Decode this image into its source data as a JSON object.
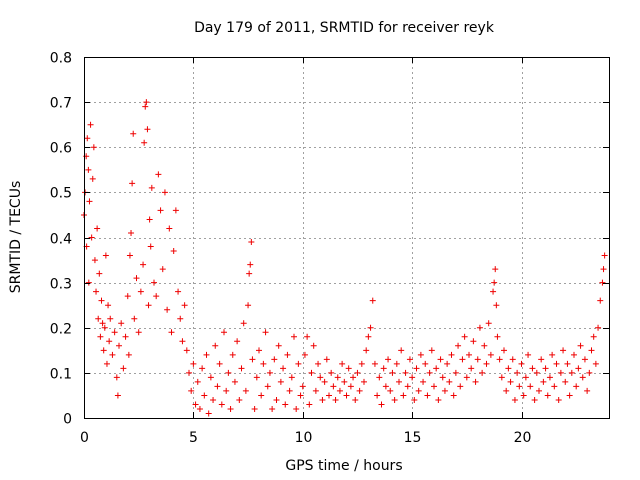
{
  "chart_data": {
    "type": "scatter",
    "title": "Day 179 of 2011, SRMTID for receiver reyk",
    "xlabel": "GPS time / hours",
    "ylabel": "SRMTID / TECUs",
    "xlim": [
      0,
      24
    ],
    "ylim": [
      0,
      0.8
    ],
    "x_ticks": [
      0,
      5,
      10,
      15,
      20
    ],
    "y_ticks": [
      0,
      0.1,
      0.2,
      0.3,
      0.4,
      0.5,
      0.6,
      0.7,
      0.8
    ],
    "x_tick_labels": [
      "0",
      "5",
      "10",
      "15",
      "20"
    ],
    "y_tick_labels": [
      "0",
      "0.1",
      "0.2",
      "0.3",
      "0.4",
      "0.5",
      "0.6",
      "0.7",
      "0.8"
    ],
    "grid": true,
    "marker": "+",
    "color": "#ee0000",
    "series": [
      {
        "points": [
          [
            0.0,
            0.45
          ],
          [
            0.05,
            0.5
          ],
          [
            0.1,
            0.58
          ],
          [
            0.12,
            0.38
          ],
          [
            0.15,
            0.62
          ],
          [
            0.2,
            0.55
          ],
          [
            0.22,
            0.3
          ],
          [
            0.25,
            0.48
          ],
          [
            0.3,
            0.65
          ],
          [
            0.35,
            0.4
          ],
          [
            0.4,
            0.53
          ],
          [
            0.45,
            0.6
          ],
          [
            0.5,
            0.35
          ],
          [
            0.55,
            0.28
          ],
          [
            0.6,
            0.42
          ],
          [
            0.65,
            0.22
          ],
          [
            0.7,
            0.32
          ],
          [
            0.75,
            0.18
          ],
          [
            0.8,
            0.26
          ],
          [
            0.85,
            0.21
          ],
          [
            0.9,
            0.15
          ],
          [
            0.95,
            0.2
          ],
          [
            1.0,
            0.36
          ],
          [
            1.05,
            0.12
          ],
          [
            1.1,
            0.25
          ],
          [
            1.15,
            0.17
          ],
          [
            1.2,
            0.22
          ],
          [
            1.3,
            0.14
          ],
          [
            1.4,
            0.19
          ],
          [
            1.5,
            0.09
          ],
          [
            1.55,
            0.05
          ],
          [
            1.6,
            0.16
          ],
          [
            1.7,
            0.21
          ],
          [
            1.8,
            0.11
          ],
          [
            1.9,
            0.18
          ],
          [
            2.0,
            0.27
          ],
          [
            2.05,
            0.14
          ],
          [
            2.1,
            0.36
          ],
          [
            2.15,
            0.41
          ],
          [
            2.2,
            0.52
          ],
          [
            2.25,
            0.63
          ],
          [
            2.3,
            0.22
          ],
          [
            2.4,
            0.31
          ],
          [
            2.5,
            0.19
          ],
          [
            2.6,
            0.28
          ],
          [
            2.7,
            0.34
          ],
          [
            2.75,
            0.61
          ],
          [
            2.8,
            0.69
          ],
          [
            2.85,
            0.7
          ],
          [
            2.9,
            0.64
          ],
          [
            2.95,
            0.25
          ],
          [
            3.0,
            0.44
          ],
          [
            3.05,
            0.38
          ],
          [
            3.1,
            0.51
          ],
          [
            3.2,
            0.3
          ],
          [
            3.3,
            0.27
          ],
          [
            3.4,
            0.54
          ],
          [
            3.5,
            0.46
          ],
          [
            3.6,
            0.33
          ],
          [
            3.7,
            0.5
          ],
          [
            3.8,
            0.24
          ],
          [
            3.9,
            0.42
          ],
          [
            4.0,
            0.19
          ],
          [
            4.1,
            0.37
          ],
          [
            4.2,
            0.46
          ],
          [
            4.3,
            0.28
          ],
          [
            4.4,
            0.22
          ],
          [
            4.5,
            0.17
          ],
          [
            4.6,
            0.25
          ],
          [
            4.7,
            0.15
          ],
          [
            4.8,
            0.1
          ],
          [
            4.9,
            0.06
          ],
          [
            5.0,
            0.12
          ],
          [
            5.1,
            0.03
          ],
          [
            5.2,
            0.08
          ],
          [
            5.3,
            0.02
          ],
          [
            5.4,
            0.11
          ],
          [
            5.5,
            0.05
          ],
          [
            5.6,
            0.14
          ],
          [
            5.7,
            0.01
          ],
          [
            5.8,
            0.09
          ],
          [
            5.9,
            0.04
          ],
          [
            6.0,
            0.16
          ],
          [
            6.1,
            0.07
          ],
          [
            6.2,
            0.12
          ],
          [
            6.3,
            0.03
          ],
          [
            6.4,
            0.19
          ],
          [
            6.5,
            0.06
          ],
          [
            6.6,
            0.1
          ],
          [
            6.7,
            0.02
          ],
          [
            6.8,
            0.14
          ],
          [
            6.9,
            0.08
          ],
          [
            7.0,
            0.17
          ],
          [
            7.1,
            0.04
          ],
          [
            7.2,
            0.11
          ],
          [
            7.3,
            0.21
          ],
          [
            7.4,
            0.06
          ],
          [
            7.5,
            0.25
          ],
          [
            7.55,
            0.32
          ],
          [
            7.6,
            0.34
          ],
          [
            7.65,
            0.39
          ],
          [
            7.7,
            0.13
          ],
          [
            7.8,
            0.02
          ],
          [
            7.9,
            0.09
          ],
          [
            8.0,
            0.15
          ],
          [
            8.1,
            0.05
          ],
          [
            8.2,
            0.12
          ],
          [
            8.3,
            0.19
          ],
          [
            8.4,
            0.07
          ],
          [
            8.5,
            0.1
          ],
          [
            8.6,
            0.02
          ],
          [
            8.7,
            0.13
          ],
          [
            8.8,
            0.04
          ],
          [
            8.9,
            0.16
          ],
          [
            9.0,
            0.08
          ],
          [
            9.1,
            0.11
          ],
          [
            9.2,
            0.03
          ],
          [
            9.3,
            0.14
          ],
          [
            9.4,
            0.06
          ],
          [
            9.5,
            0.09
          ],
          [
            9.6,
            0.18
          ],
          [
            9.7,
            0.02
          ],
          [
            9.8,
            0.12
          ],
          [
            9.9,
            0.05
          ],
          [
            10.0,
            0.07
          ],
          [
            10.1,
            0.14
          ],
          [
            10.2,
            0.18
          ],
          [
            10.3,
            0.03
          ],
          [
            10.4,
            0.1
          ],
          [
            10.5,
            0.16
          ],
          [
            10.6,
            0.06
          ],
          [
            10.7,
            0.12
          ],
          [
            10.8,
            0.09
          ],
          [
            10.9,
            0.04
          ],
          [
            11.0,
            0.08
          ],
          [
            11.1,
            0.13
          ],
          [
            11.2,
            0.05
          ],
          [
            11.3,
            0.1
          ],
          [
            11.4,
            0.07
          ],
          [
            11.5,
            0.04
          ],
          [
            11.6,
            0.09
          ],
          [
            11.7,
            0.06
          ],
          [
            11.8,
            0.12
          ],
          [
            11.9,
            0.08
          ],
          [
            12.0,
            0.05
          ],
          [
            12.1,
            0.11
          ],
          [
            12.2,
            0.07
          ],
          [
            12.3,
            0.09
          ],
          [
            12.4,
            0.04
          ],
          [
            12.5,
            0.1
          ],
          [
            12.6,
            0.06
          ],
          [
            12.7,
            0.12
          ],
          [
            12.8,
            0.08
          ],
          [
            12.9,
            0.15
          ],
          [
            13.0,
            0.18
          ],
          [
            13.1,
            0.2
          ],
          [
            13.2,
            0.26
          ],
          [
            13.3,
            0.12
          ],
          [
            13.4,
            0.05
          ],
          [
            13.5,
            0.09
          ],
          [
            13.6,
            0.03
          ],
          [
            13.7,
            0.11
          ],
          [
            13.8,
            0.07
          ],
          [
            13.9,
            0.13
          ],
          [
            14.0,
            0.06
          ],
          [
            14.1,
            0.1
          ],
          [
            14.2,
            0.04
          ],
          [
            14.3,
            0.12
          ],
          [
            14.4,
            0.08
          ],
          [
            14.5,
            0.15
          ],
          [
            14.6,
            0.05
          ],
          [
            14.7,
            0.1
          ],
          [
            14.8,
            0.07
          ],
          [
            14.9,
            0.13
          ],
          [
            15.0,
            0.09
          ],
          [
            15.1,
            0.04
          ],
          [
            15.2,
            0.11
          ],
          [
            15.3,
            0.06
          ],
          [
            15.4,
            0.14
          ],
          [
            15.5,
            0.08
          ],
          [
            15.6,
            0.12
          ],
          [
            15.7,
            0.05
          ],
          [
            15.8,
            0.1
          ],
          [
            15.9,
            0.15
          ],
          [
            16.0,
            0.07
          ],
          [
            16.1,
            0.11
          ],
          [
            16.2,
            0.04
          ],
          [
            16.3,
            0.13
          ],
          [
            16.4,
            0.09
          ],
          [
            16.5,
            0.06
          ],
          [
            16.6,
            0.12
          ],
          [
            16.7,
            0.08
          ],
          [
            16.8,
            0.14
          ],
          [
            16.9,
            0.05
          ],
          [
            17.0,
            0.1
          ],
          [
            17.1,
            0.16
          ],
          [
            17.2,
            0.07
          ],
          [
            17.3,
            0.13
          ],
          [
            17.4,
            0.18
          ],
          [
            17.5,
            0.09
          ],
          [
            17.6,
            0.14
          ],
          [
            17.7,
            0.11
          ],
          [
            17.8,
            0.17
          ],
          [
            17.9,
            0.08
          ],
          [
            18.0,
            0.13
          ],
          [
            18.1,
            0.2
          ],
          [
            18.2,
            0.1
          ],
          [
            18.3,
            0.16
          ],
          [
            18.4,
            0.12
          ],
          [
            18.5,
            0.21
          ],
          [
            18.6,
            0.14
          ],
          [
            18.7,
            0.28
          ],
          [
            18.75,
            0.3
          ],
          [
            18.8,
            0.33
          ],
          [
            18.85,
            0.25
          ],
          [
            18.9,
            0.18
          ],
          [
            19.0,
            0.13
          ],
          [
            19.1,
            0.09
          ],
          [
            19.2,
            0.15
          ],
          [
            19.3,
            0.06
          ],
          [
            19.4,
            0.11
          ],
          [
            19.5,
            0.08
          ],
          [
            19.6,
            0.13
          ],
          [
            19.7,
            0.04
          ],
          [
            19.8,
            0.1
          ],
          [
            19.9,
            0.07
          ],
          [
            20.0,
            0.12
          ],
          [
            20.1,
            0.05
          ],
          [
            20.2,
            0.09
          ],
          [
            20.3,
            0.14
          ],
          [
            20.4,
            0.07
          ],
          [
            20.5,
            0.11
          ],
          [
            20.6,
            0.04
          ],
          [
            20.7,
            0.1
          ],
          [
            20.8,
            0.06
          ],
          [
            20.9,
            0.13
          ],
          [
            21.0,
            0.08
          ],
          [
            21.1,
            0.11
          ],
          [
            21.2,
            0.05
          ],
          [
            21.3,
            0.09
          ],
          [
            21.4,
            0.14
          ],
          [
            21.5,
            0.07
          ],
          [
            21.6,
            0.12
          ],
          [
            21.7,
            0.04
          ],
          [
            21.8,
            0.1
          ],
          [
            21.9,
            0.15
          ],
          [
            22.0,
            0.08
          ],
          [
            22.1,
            0.12
          ],
          [
            22.2,
            0.05
          ],
          [
            22.3,
            0.1
          ],
          [
            22.4,
            0.14
          ],
          [
            22.5,
            0.07
          ],
          [
            22.6,
            0.11
          ],
          [
            22.7,
            0.16
          ],
          [
            22.8,
            0.09
          ],
          [
            22.9,
            0.13
          ],
          [
            23.0,
            0.06
          ],
          [
            23.1,
            0.1
          ],
          [
            23.2,
            0.15
          ],
          [
            23.3,
            0.18
          ],
          [
            23.4,
            0.12
          ],
          [
            23.5,
            0.2
          ],
          [
            23.6,
            0.26
          ],
          [
            23.7,
            0.3
          ],
          [
            23.75,
            0.33
          ],
          [
            23.8,
            0.36
          ]
        ]
      }
    ]
  }
}
